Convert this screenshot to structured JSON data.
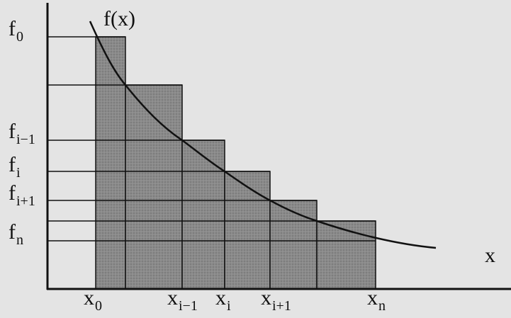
{
  "curve_label": {
    "main": "f(x)"
  },
  "axis_label": "x",
  "y_labels": [
    {
      "main": "f",
      "sub": "0"
    },
    {
      "main": "f",
      "sub": "i−1"
    },
    {
      "main": "f",
      "sub": "i"
    },
    {
      "main": "f",
      "sub": "i+1"
    },
    {
      "main": "f",
      "sub": "n"
    }
  ],
  "x_labels": [
    {
      "main": "x",
      "sub": "0"
    },
    {
      "main": "x",
      "sub": "i−1"
    },
    {
      "main": "x",
      "sub": "i"
    },
    {
      "main": "x",
      "sub": "i+1"
    },
    {
      "main": "x",
      "sub": "n"
    }
  ]
}
